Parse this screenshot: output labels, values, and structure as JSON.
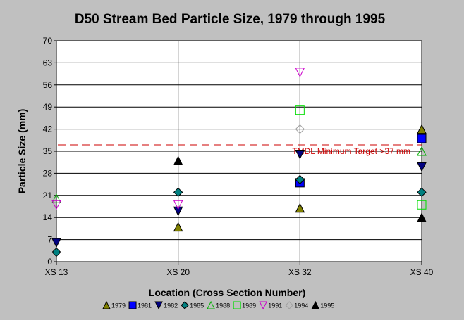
{
  "chart_data": {
    "type": "scatter",
    "title": "D50 Stream Bed Particle Size, 1979 through 1995",
    "xlabel": "Location (Cross Section Number)",
    "ylabel": "Particle Size (mm)",
    "categories": [
      "XS 13",
      "XS 20",
      "XS 32",
      "XS 40"
    ],
    "ylim": [
      0,
      70
    ],
    "yticks": [
      0,
      7,
      14,
      21,
      28,
      35,
      42,
      49,
      56,
      63,
      70
    ],
    "grid": true,
    "legend_position": "bottom",
    "series": [
      {
        "name": "1979",
        "marker": "triangle-up",
        "filled": true,
        "color": "#808000",
        "values": [
          null,
          11,
          17,
          42
        ]
      },
      {
        "name": "1981",
        "marker": "square",
        "filled": true,
        "color": "#0000ff",
        "values": [
          null,
          null,
          25,
          39
        ]
      },
      {
        "name": "1982",
        "marker": "triangle-down",
        "filled": true,
        "color": "#000080",
        "values": [
          6,
          16,
          34,
          30
        ]
      },
      {
        "name": "1985",
        "marker": "diamond",
        "filled": true,
        "color": "#008080",
        "values": [
          3,
          22,
          26,
          22
        ]
      },
      {
        "name": "1988",
        "marker": "triangle-up",
        "filled": false,
        "color": "#00b000",
        "values": [
          20,
          null,
          null,
          35
        ]
      },
      {
        "name": "1989",
        "marker": "square",
        "filled": false,
        "color": "#00dd00",
        "values": [
          null,
          null,
          48,
          18
        ]
      },
      {
        "name": "1991",
        "marker": "triangle-down",
        "filled": false,
        "color": "#cc00cc",
        "values": [
          18,
          18,
          60,
          null
        ]
      },
      {
        "name": "1994",
        "marker": "diamond",
        "filled": false,
        "color": "#a0a0a0",
        "values": [
          null,
          null,
          42,
          null
        ]
      },
      {
        "name": "1995",
        "marker": "triangle-up",
        "filled": true,
        "color": "#000000",
        "values": [
          null,
          32,
          null,
          14
        ]
      }
    ],
    "reference_line": {
      "value": 37,
      "label": "TMDL Minimum Target >37 mm",
      "color": "#cc0000",
      "style": "dashed"
    }
  }
}
